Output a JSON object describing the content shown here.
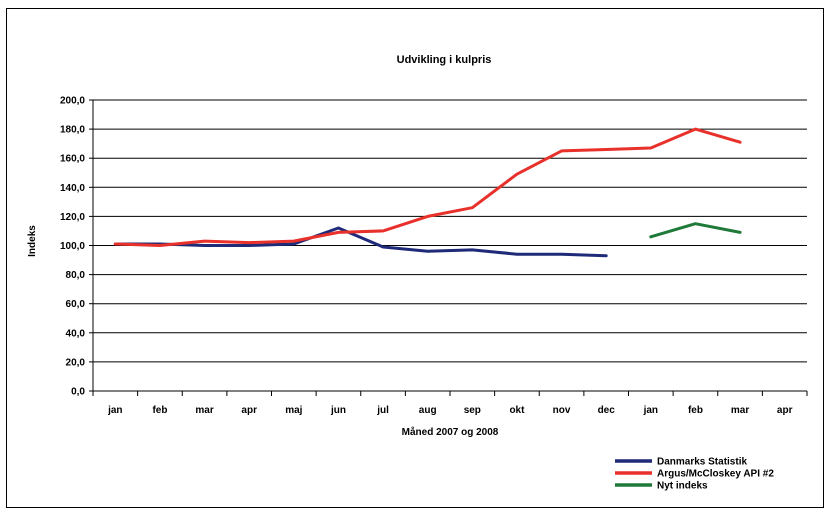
{
  "chart_data": {
    "type": "line",
    "title": "Udvikling i kulpris",
    "xlabel": "Måned 2007 og 2008",
    "ylabel": "Indeks",
    "categories": [
      "jan",
      "feb",
      "mar",
      "apr",
      "maj",
      "jun",
      "jul",
      "aug",
      "sep",
      "okt",
      "nov",
      "dec",
      "jan",
      "feb",
      "mar",
      "apr"
    ],
    "ylim": [
      0,
      200
    ],
    "yticks": [
      0,
      20,
      40,
      60,
      80,
      100,
      120,
      140,
      160,
      180,
      200
    ],
    "ytick_labels": [
      "0,0",
      "20,0",
      "40,0",
      "60,0",
      "80,0",
      "100,0",
      "120,0",
      "140,0",
      "160,0",
      "180,0",
      "200,0"
    ],
    "grid": true,
    "legend_position": "bottom-right",
    "series": [
      {
        "name": "Danmarks Statistik",
        "color": "#1f2a78",
        "values": [
          101,
          101,
          100,
          100,
          101,
          112,
          99,
          96,
          97,
          94,
          94,
          93,
          null,
          null,
          null,
          null
        ]
      },
      {
        "name": "Argus/McCloskey API #2",
        "color": "#e8312b",
        "values": [
          101,
          100,
          103,
          102,
          103,
          109,
          110,
          120,
          126,
          149,
          165,
          166,
          167,
          180,
          171,
          null
        ]
      },
      {
        "name": "Nyt indeks",
        "color": "#1f7a3a",
        "values": [
          null,
          null,
          null,
          null,
          null,
          null,
          null,
          null,
          null,
          null,
          null,
          null,
          106,
          115,
          109,
          null
        ]
      }
    ]
  }
}
